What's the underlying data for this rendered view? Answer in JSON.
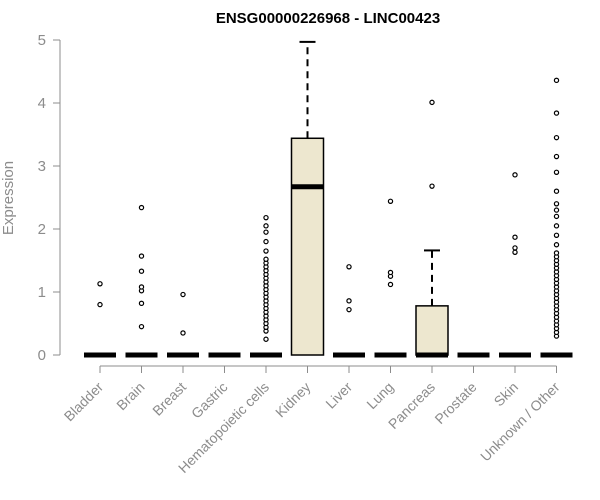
{
  "chart_data": {
    "type": "box",
    "title": "ENSG00000226968 - LINC00423",
    "ylabel": "Expression",
    "xlabel": "",
    "ylim": [
      0,
      5
    ],
    "yticks": [
      0,
      1,
      2,
      3,
      4,
      5
    ],
    "grid": false,
    "legend": "none",
    "colors": {
      "box_fill": "#ede7cf",
      "stroke": "#000000",
      "axis": "#8c8c8c"
    },
    "categories": [
      "Bladder",
      "Brain",
      "Breast",
      "Gastric",
      "Hematopoietic cells",
      "Kidney",
      "Liver",
      "Lung",
      "Pancreas",
      "Prostate",
      "Skin",
      "Unknown / Other"
    ],
    "boxes": [
      {
        "category": "Bladder",
        "min": 0,
        "q1": 0,
        "median": 0,
        "q3": 0,
        "max": 0,
        "outliers": [
          0.8,
          1.13
        ]
      },
      {
        "category": "Brain",
        "min": 0,
        "q1": 0,
        "median": 0,
        "q3": 0,
        "max": 0,
        "outliers": [
          0.45,
          0.82,
          1.02,
          1.08,
          1.33,
          1.57,
          2.34
        ]
      },
      {
        "category": "Breast",
        "min": 0,
        "q1": 0,
        "median": 0,
        "q3": 0,
        "max": 0,
        "outliers": [
          0.35,
          0.96
        ]
      },
      {
        "category": "Gastric",
        "min": 0,
        "q1": 0,
        "median": 0,
        "q3": 0,
        "max": 0,
        "outliers": []
      },
      {
        "category": "Hematopoietic cells",
        "min": 0,
        "q1": 0,
        "median": 0,
        "q3": 0,
        "max": 0,
        "outliers": [
          0.25,
          0.38,
          0.44,
          0.5,
          0.56,
          0.62,
          0.68,
          0.74,
          0.8,
          0.86,
          0.92,
          0.98,
          1.04,
          1.1,
          1.16,
          1.22,
          1.28,
          1.34,
          1.4,
          1.46,
          1.52,
          1.65,
          1.8,
          1.95,
          2.05,
          2.18
        ]
      },
      {
        "category": "Kidney",
        "min": 0,
        "q1": 0,
        "median": 2.67,
        "q3": 3.44,
        "max": 4.97,
        "outliers": []
      },
      {
        "category": "Liver",
        "min": 0,
        "q1": 0,
        "median": 0,
        "q3": 0,
        "max": 0,
        "outliers": [
          0.72,
          0.86,
          1.4
        ]
      },
      {
        "category": "Lung",
        "min": 0,
        "q1": 0,
        "median": 0,
        "q3": 0,
        "max": 0,
        "outliers": [
          1.12,
          1.25,
          1.31,
          2.44
        ]
      },
      {
        "category": "Pancreas",
        "min": 0,
        "q1": 0,
        "median": 0,
        "q3": 0.78,
        "max": 1.66,
        "outliers": [
          2.68,
          4.01
        ]
      },
      {
        "category": "Prostate",
        "min": 0,
        "q1": 0,
        "median": 0,
        "q3": 0,
        "max": 0,
        "outliers": []
      },
      {
        "category": "Skin",
        "min": 0,
        "q1": 0,
        "median": 0,
        "q3": 0,
        "max": 0,
        "outliers": [
          1.63,
          1.7,
          1.87,
          2.86
        ]
      },
      {
        "category": "Unknown / Other",
        "min": 0,
        "q1": 0,
        "median": 0,
        "q3": 0,
        "max": 0,
        "outliers": [
          0.3,
          0.36,
          0.42,
          0.48,
          0.54,
          0.6,
          0.66,
          0.72,
          0.78,
          0.84,
          0.9,
          0.96,
          1.02,
          1.08,
          1.14,
          1.2,
          1.26,
          1.32,
          1.38,
          1.44,
          1.5,
          1.56,
          1.62,
          1.75,
          1.9,
          2.05,
          2.2,
          2.3,
          2.4,
          2.6,
          2.9,
          3.15,
          3.45,
          3.84,
          4.36
        ]
      }
    ]
  }
}
